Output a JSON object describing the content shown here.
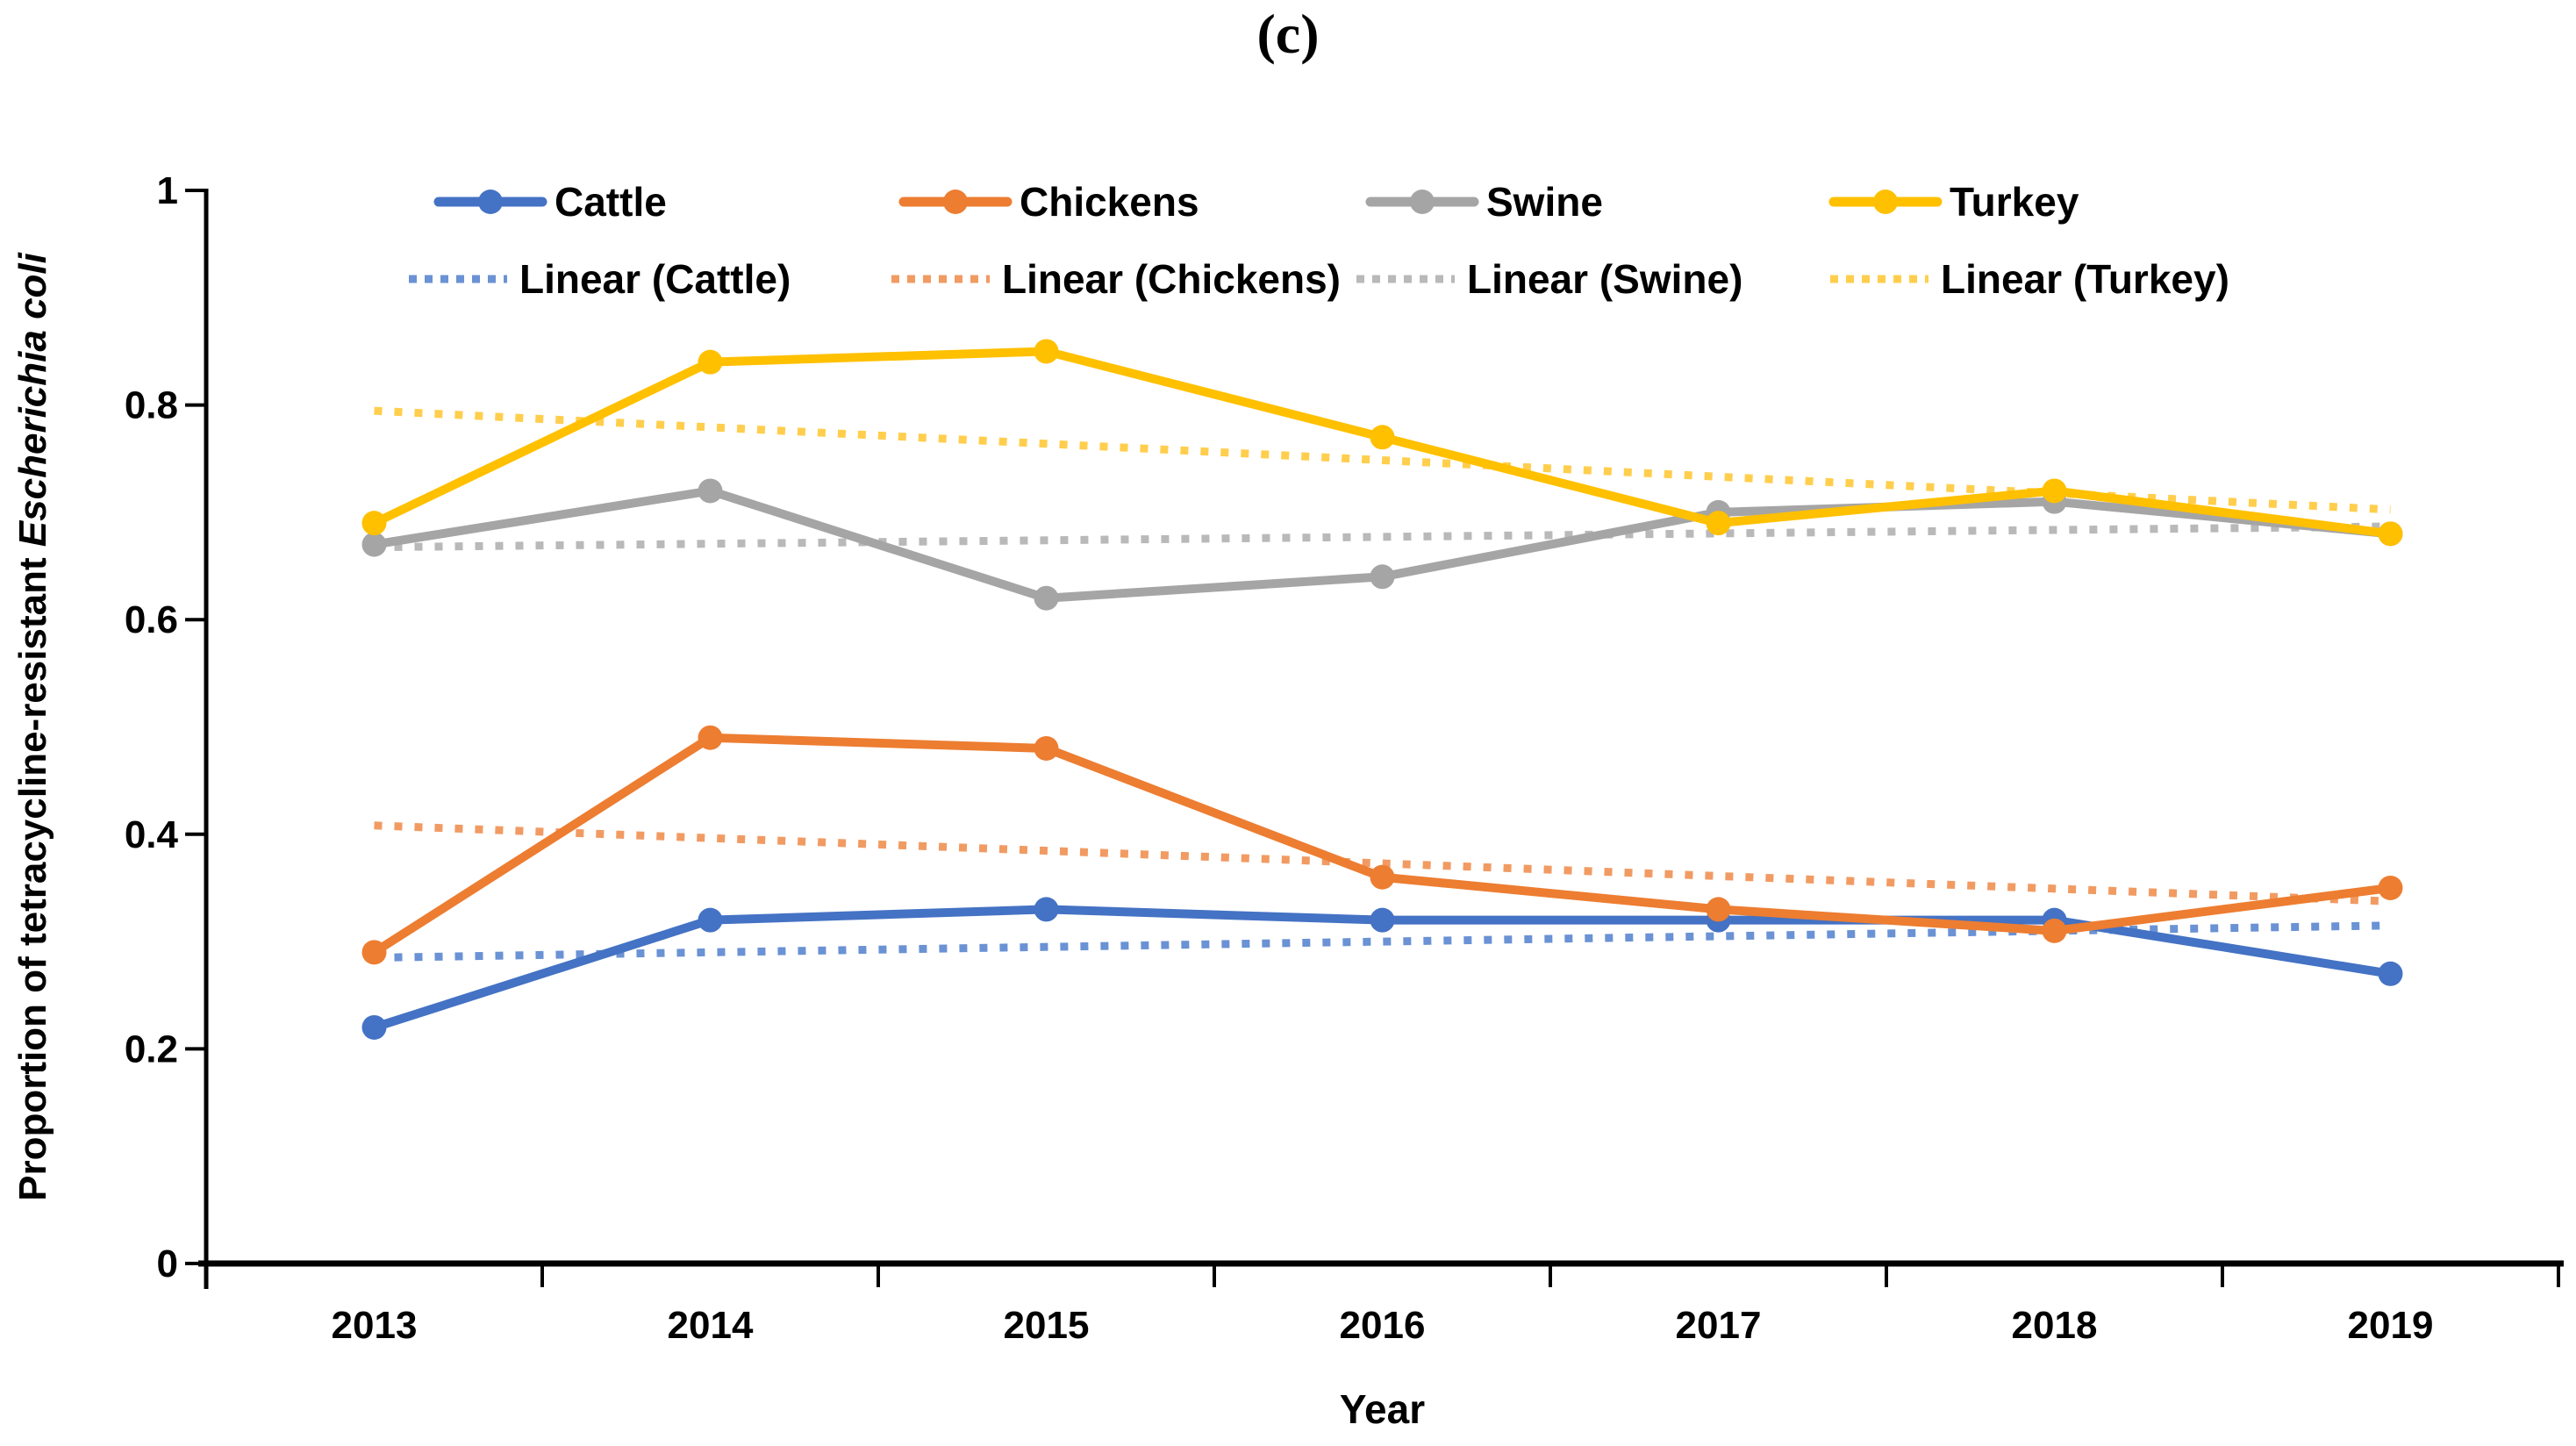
{
  "figure": {
    "panel_label": "(c)"
  },
  "chart_data": {
    "type": "line",
    "title": "(c)",
    "categories": [
      "2013",
      "2014",
      "2015",
      "2016",
      "2017",
      "2018",
      "2019"
    ],
    "xlabel": "Year",
    "ylabel_regular": "Proportion of tetracycline-resistant ",
    "ylabel_italic": "Escherichia coli",
    "ylim": [
      0,
      1
    ],
    "y_ticks": [
      0,
      0.2,
      0.4,
      0.6,
      0.8,
      1
    ],
    "y_tick_labels": [
      "0",
      "0.2",
      "0.4",
      "0.6",
      "0.8",
      "1"
    ],
    "grid": false,
    "legend_position": "top-two-rows",
    "axis_color": "#000000",
    "series": [
      {
        "name": "Cattle",
        "color": "#4472C4",
        "trend_color": "#6A92D4",
        "values": [
          0.22,
          0.32,
          0.33,
          0.32,
          0.32,
          0.32,
          0.27
        ],
        "trend_label": "Linear (Cattle)"
      },
      {
        "name": "Chickens",
        "color": "#ED7D31",
        "trend_color": "#F19B63",
        "values": [
          0.29,
          0.49,
          0.48,
          0.36,
          0.33,
          0.31,
          0.35
        ],
        "trend_label": "Linear (Chickens)"
      },
      {
        "name": "Swine",
        "color": "#A5A5A5",
        "trend_color": "#B9B9B9",
        "values": [
          0.67,
          0.72,
          0.62,
          0.64,
          0.7,
          0.71,
          0.68
        ],
        "trend_label": "Linear (Swine)"
      },
      {
        "name": "Turkey",
        "color": "#FFC000",
        "trend_color": "#FFCE4D",
        "values": [
          0.69,
          0.84,
          0.85,
          0.77,
          0.69,
          0.72,
          0.68
        ],
        "trend_label": "Linear (Turkey)"
      }
    ],
    "trendlines": {
      "fit": "linear",
      "style": "dotted",
      "endpoints_2013_2019": {
        "Cattle": [
          0.29,
          0.32
        ],
        "Chickens": [
          0.41,
          0.34
        ],
        "Swine": [
          0.67,
          0.69
        ],
        "Turkey": [
          0.79,
          0.7
        ]
      }
    }
  }
}
